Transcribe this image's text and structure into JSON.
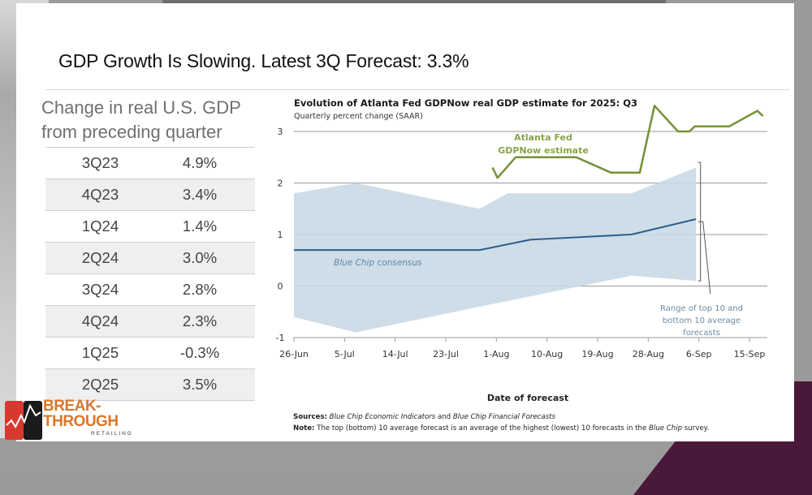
{
  "slide": {
    "title": "GDP Growth Is Slowing. Latest 3Q Forecast: 3.3%"
  },
  "table": {
    "heading_line1": "Change in real U.S. GDP",
    "heading_line2": "from preceding quarter",
    "rows": [
      {
        "quarter": "3Q23",
        "value": "4.9%"
      },
      {
        "quarter": "4Q23",
        "value": "3.4%"
      },
      {
        "quarter": "1Q24",
        "value": "1.4%"
      },
      {
        "quarter": "2Q24",
        "value": "3.0%"
      },
      {
        "quarter": "3Q24",
        "value": "2.8%"
      },
      {
        "quarter": "4Q24",
        "value": "2.3%"
      },
      {
        "quarter": "1Q25",
        "value": "-0.3%"
      },
      {
        "quarter": "2Q25",
        "value": "3.5%"
      }
    ]
  },
  "logo": {
    "line1": "BREAK-",
    "line2": "THROUGH",
    "sub": "RETAILING",
    "colors": {
      "red": "#d63a2f",
      "black": "#1a1a1a",
      "orange": "#d9762b"
    }
  },
  "chart_data": {
    "type": "line",
    "title": "Evolution of Atlanta Fed GDPNow real GDP estimate for 2025: Q3",
    "subtitle": "Quarterly percent change (SAAR)",
    "xlabel": "Date of forecast",
    "ylabel": "",
    "ylim": [
      -1,
      3
    ],
    "yticks": [
      3,
      2,
      1,
      0,
      -1
    ],
    "x_unit": "days since 26-Jun",
    "xlim": [
      0,
      81
    ],
    "xticks": [
      {
        "day": 0,
        "label": "26-Jun"
      },
      {
        "day": 9,
        "label": "5-Jul"
      },
      {
        "day": 18,
        "label": "14-Jul"
      },
      {
        "day": 27,
        "label": "23-Jul"
      },
      {
        "day": 36,
        "label": "1-Aug"
      },
      {
        "day": 45,
        "label": "10-Aug"
      },
      {
        "day": 54,
        "label": "19-Aug"
      },
      {
        "day": 63,
        "label": "28-Aug"
      },
      {
        "day": 72,
        "label": "6-Sep"
      },
      {
        "day": 81,
        "label": "15-Sep"
      }
    ],
    "grid": true,
    "colors": {
      "gdpnow": "#76913a",
      "consensus": "#2f5d8c",
      "band": "#c9d9e6",
      "grid": "#8a8a8a",
      "annotation": "#6f8aa0"
    },
    "series": [
      {
        "name": "Atlanta Fed GDPNow estimate",
        "label_lines": [
          "Atlanta Fed",
          "GDPNow estimate"
        ],
        "points": [
          [
            35.3,
            2.3
          ],
          [
            36.2,
            2.1
          ],
          [
            39.4,
            2.5
          ],
          [
            50.2,
            2.5
          ],
          [
            56.4,
            2.2
          ],
          [
            61.5,
            2.2
          ],
          [
            64.1,
            3.5
          ],
          [
            68.3,
            3.0
          ],
          [
            70.3,
            3.0
          ],
          [
            71.3,
            3.1
          ],
          [
            77.4,
            3.1
          ],
          [
            82.4,
            3.4
          ],
          [
            83.4,
            3.3
          ]
        ]
      },
      {
        "name": "Blue Chip consensus",
        "label_italic": "Blue Chip",
        "label_rest": " consensus",
        "points": [
          [
            0,
            0.7
          ],
          [
            33,
            0.7
          ],
          [
            42,
            0.9
          ],
          [
            60,
            1.0
          ],
          [
            71.5,
            1.3
          ]
        ]
      }
    ],
    "band": {
      "name": "Range of top 10 and bottom 10 average forecasts",
      "label_lines": [
        "Range of top 10 and",
        "bottom 10 average",
        "forecasts"
      ],
      "upper": [
        [
          0,
          1.8
        ],
        [
          11,
          2.0
        ],
        [
          33,
          1.5
        ],
        [
          38,
          1.8
        ],
        [
          60,
          1.8
        ],
        [
          71.5,
          2.3
        ]
      ],
      "lower": [
        [
          71.5,
          0.1
        ],
        [
          60,
          0.2
        ],
        [
          33,
          -0.4
        ],
        [
          11,
          -0.9
        ],
        [
          0,
          -0.6
        ]
      ]
    },
    "sources_label": "Sources:",
    "sources_text_1": "Blue Chip Economic Indicators",
    "sources_and": " and ",
    "sources_text_2": "Blue Chip Financial Forecasts",
    "note_label": "Note:",
    "note_text_1": " The top (bottom) 10 average forecast is an average of the highest (lowest) 10 forecasts in the ",
    "note_italic": "Blue Chip",
    "note_text_2": " survey."
  }
}
